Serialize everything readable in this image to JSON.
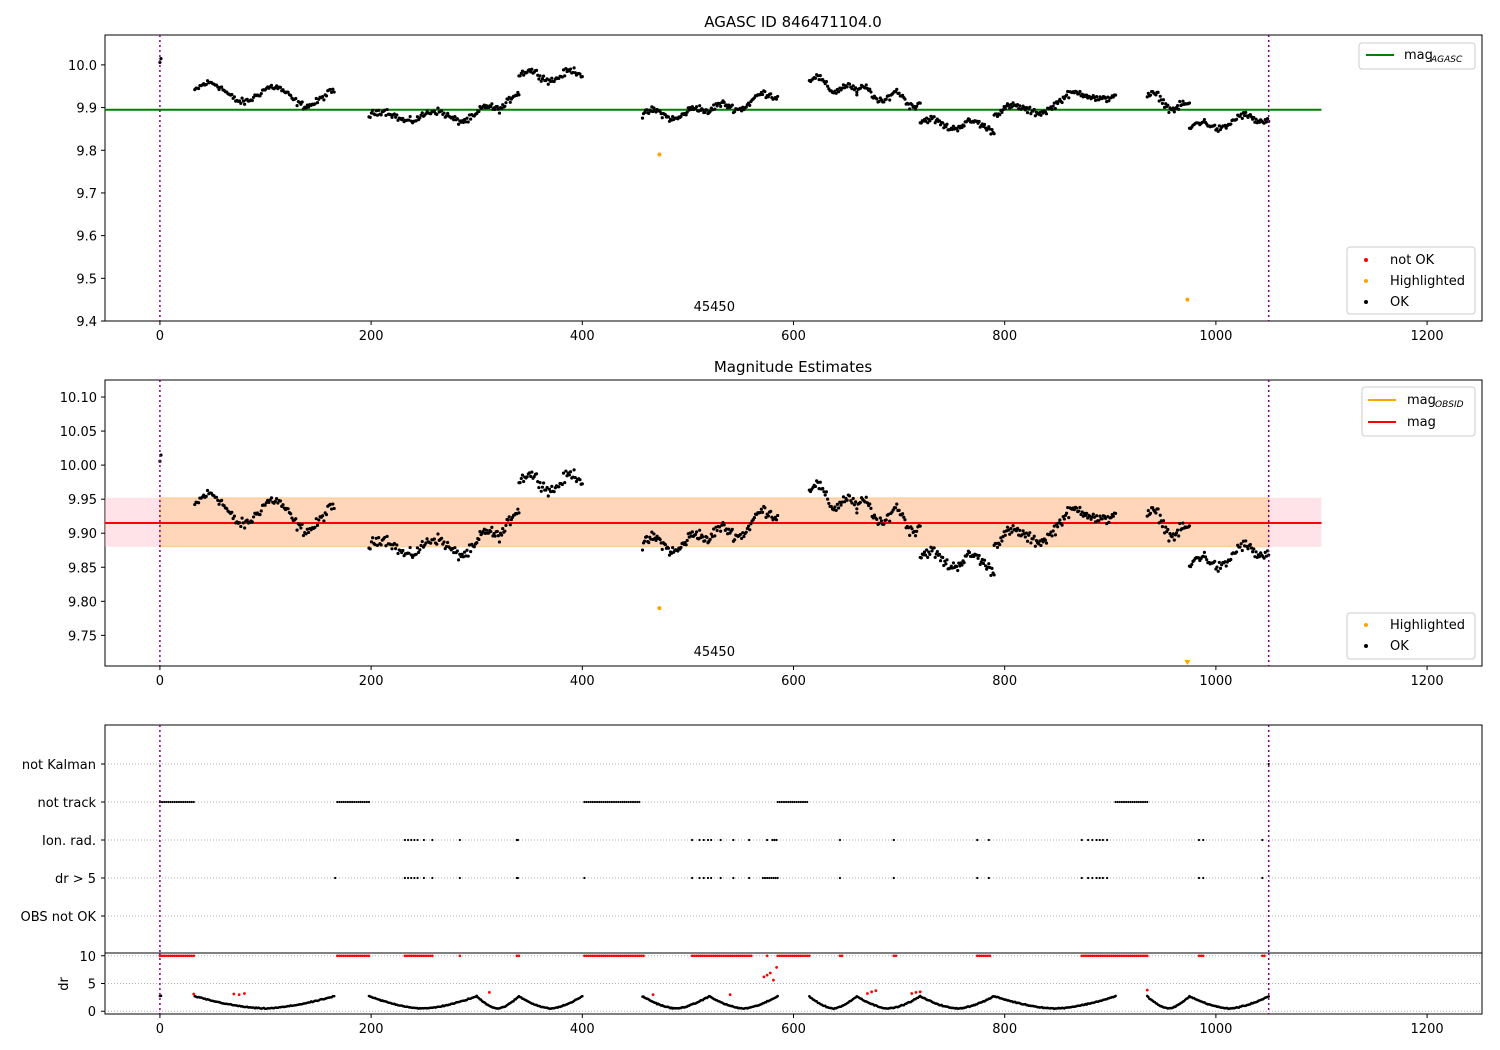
{
  "chart_data": [
    {
      "type": "scatter",
      "title": "AGASC ID 846471104.0",
      "xlim": [
        -52,
        1252
      ],
      "ylim": [
        9.4,
        10.07
      ],
      "xticks": [
        0,
        200,
        400,
        600,
        800,
        1000,
        1200
      ],
      "yticks": [
        9.4,
        9.5,
        9.6,
        9.7,
        9.8,
        9.9,
        10.0
      ],
      "ytick_format": "1",
      "grid": false,
      "vlines": [
        0,
        1050
      ],
      "obsid_label": {
        "text": "45450",
        "x": 525
      },
      "hline": {
        "name": "mag_AGASC",
        "y": 9.895,
        "x": [
          -52,
          1100
        ],
        "color": "#008000"
      },
      "highlighted": [
        [
          473,
          9.79
        ],
        [
          973,
          9.45
        ]
      ],
      "ok_segments": [
        {
          "x0": 0,
          "x1": 1,
          "n": 2,
          "base": 10.005,
          "trend": 0,
          "amp": 0.003,
          "period": 5
        },
        {
          "x0": 33,
          "x1": 165,
          "n": 110,
          "base": 9.93,
          "trend": -0.02,
          "amp": 0.02,
          "period": 60
        },
        {
          "x0": 198,
          "x1": 300,
          "n": 90,
          "base": 9.88,
          "trend": 0.0,
          "amp": 0.012,
          "period": 50
        },
        {
          "x0": 300,
          "x1": 340,
          "n": 40,
          "base": 9.905,
          "trend": 0.04,
          "amp": 0.01,
          "period": 30
        },
        {
          "x0": 340,
          "x1": 400,
          "n": 55,
          "base": 9.975,
          "trend": 0.0,
          "amp": 0.012,
          "period": 40
        },
        {
          "x0": 457,
          "x1": 520,
          "n": 65,
          "base": 9.885,
          "trend": 0.01,
          "amp": 0.012,
          "period": 40
        },
        {
          "x0": 520,
          "x1": 585,
          "n": 60,
          "base": 9.91,
          "trend": 0.04,
          "amp": 0.012,
          "period": 40
        },
        {
          "x0": 615,
          "x1": 660,
          "n": 40,
          "base": 9.95,
          "trend": -0.03,
          "amp": 0.012,
          "period": 30
        },
        {
          "x0": 660,
          "x1": 720,
          "n": 55,
          "base": 9.925,
          "trend": -0.02,
          "amp": 0.015,
          "period": 30
        },
        {
          "x0": 720,
          "x1": 790,
          "n": 70,
          "base": 9.86,
          "trend": -0.01,
          "amp": 0.01,
          "period": 40
        },
        {
          "x0": 790,
          "x1": 905,
          "n": 110,
          "base": 9.91,
          "trend": 0.06,
          "amp": 0.015,
          "period": 60
        },
        {
          "x0": 935,
          "x1": 975,
          "n": 40,
          "base": 9.91,
          "trend": -0.03,
          "amp": 0.012,
          "period": 30
        },
        {
          "x0": 975,
          "x1": 1050,
          "n": 70,
          "base": 9.865,
          "trend": 0.03,
          "amp": 0.012,
          "period": 40
        }
      ],
      "legend_lines": [
        {
          "label": "mag",
          "sub": "AGASC",
          "color": "#008000"
        }
      ],
      "legend_points": [
        {
          "label": "not OK",
          "color": "#ff0000"
        },
        {
          "label": "Highlighted",
          "color": "#ffa500"
        },
        {
          "label": "OK",
          "color": "#000000"
        }
      ]
    },
    {
      "type": "scatter",
      "title": "Magnitude Estimates",
      "xlim": [
        -52,
        1252
      ],
      "ylim": [
        9.705,
        10.125
      ],
      "xticks": [
        0,
        200,
        400,
        600,
        800,
        1000,
        1200
      ],
      "yticks": [
        9.75,
        9.8,
        9.85,
        9.9,
        9.95,
        10.0,
        10.05,
        10.1
      ],
      "ytick_format": "2",
      "grid": false,
      "vlines": [
        0,
        1050
      ],
      "obsid_label": {
        "text": "45450",
        "x": 525
      },
      "band_pink": {
        "y0": 9.88,
        "y1": 9.952,
        "x": [
          -52,
          1100
        ],
        "color": "#ffc0cb"
      },
      "band_orange": {
        "y0": 9.88,
        "y1": 9.952,
        "x": [
          0,
          1050
        ],
        "color": "#ffa500"
      },
      "hline": {
        "name": "mag",
        "y": 9.915,
        "x": [
          -52,
          1100
        ],
        "color": "#ff0000"
      },
      "highlighted": [
        [
          473,
          9.79
        ]
      ],
      "offscale_marker": {
        "x": 973,
        "color": "#ffa500"
      },
      "ok_segments": "same as panel 1",
      "legend_lines": [
        {
          "label": "mag",
          "sub": "OBSID",
          "color": "#ffa500"
        },
        {
          "label": "mag",
          "sub": "",
          "color": "#ff0000"
        }
      ],
      "legend_points": [
        {
          "label": "Highlighted",
          "color": "#ffa500"
        },
        {
          "label": "OK",
          "color": "#000000"
        }
      ]
    },
    {
      "type": "scatter",
      "title": "",
      "xlim": [
        -52,
        1252
      ],
      "categories": [
        "not Kalman",
        "not track",
        "Ion. rad.",
        "dr > 5",
        "OBS not OK"
      ],
      "grid": true,
      "vlines": [
        0,
        1050
      ],
      "flags": {
        "not Kalman": {
          "points": [
            1050
          ],
          "ranges": []
        },
        "not track": {
          "points": [],
          "ranges": [
            [
              0,
              32
            ],
            [
              168,
              198
            ],
            [
              402,
              455
            ],
            [
              585,
              613
            ],
            [
              905,
              935
            ]
          ]
        },
        "Ion. rad.": {
          "points": [
            232,
            235,
            238,
            241,
            244,
            250,
            258,
            284,
            338,
            339,
            504,
            511,
            515,
            519,
            522,
            531,
            543,
            558,
            575,
            580,
            582,
            584,
            644,
            695,
            774,
            785,
            873,
            879,
            883,
            887,
            890,
            893,
            897,
            984,
            988,
            1044
          ],
          "ranges": []
        },
        "dr > 5": {
          "points": [
            166,
            232,
            235,
            238,
            241,
            244,
            250,
            258,
            284,
            338,
            339,
            402,
            504,
            511,
            515,
            519,
            522,
            531,
            543,
            558,
            644,
            695,
            774,
            785,
            873,
            879,
            883,
            887,
            890,
            893,
            897,
            984,
            988,
            1044
          ],
          "ranges": [
            [
              571,
              585
            ]
          ]
        },
        "OBS not OK": {
          "points": [],
          "ranges": []
        }
      }
    },
    {
      "type": "scatter",
      "title": "",
      "ylabel": "dr",
      "xlim": [
        -52,
        1252
      ],
      "ylim": [
        -0.5,
        10.5
      ],
      "yticks": [
        0,
        5,
        10
      ],
      "xticks": [
        0,
        200,
        400,
        600,
        800,
        1000,
        1200
      ],
      "vlines": [
        0,
        1050
      ],
      "ok_points_note": "black dots form arcs between 0 and 3 following the segments of panel 1",
      "red_at_10_ranges": [
        [
          0,
          32
        ],
        [
          168,
          198
        ],
        [
          232,
          258
        ],
        [
          338,
          340
        ],
        [
          402,
          458
        ],
        [
          504,
          560
        ],
        [
          585,
          615
        ],
        [
          644,
          646
        ],
        [
          695,
          697
        ],
        [
          774,
          786
        ],
        [
          873,
          935
        ],
        [
          984,
          988
        ],
        [
          1044,
          1046
        ]
      ],
      "red_at_10_points": [
        284,
        575
      ],
      "red_low": [
        [
          32,
          3.1
        ],
        [
          70,
          3.1
        ],
        [
          75,
          3.0
        ],
        [
          80,
          3.2
        ],
        [
          312,
          3.4
        ],
        [
          467,
          3.0
        ],
        [
          540,
          3.0
        ],
        [
          572,
          6.2
        ],
        [
          575,
          6.5
        ],
        [
          578,
          6.9
        ],
        [
          581,
          5.6
        ],
        [
          584,
          7.9
        ],
        [
          670,
          3.2
        ],
        [
          674,
          3.5
        ],
        [
          678,
          3.7
        ],
        [
          712,
          3.2
        ],
        [
          716,
          3.4
        ],
        [
          720,
          3.5
        ],
        [
          935,
          3.8
        ]
      ]
    }
  ]
}
